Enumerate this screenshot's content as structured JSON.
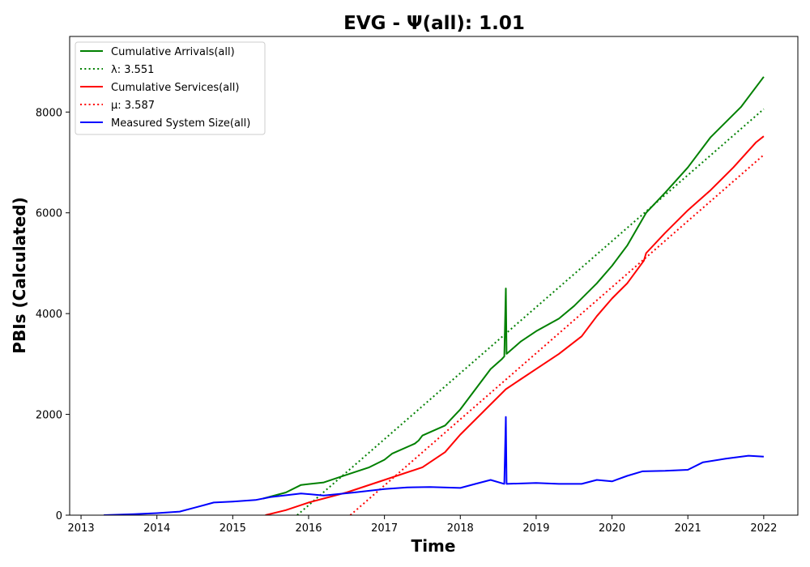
{
  "chart_data": {
    "type": "line",
    "title": "EVG -  Ψ(all): 1.01",
    "xlabel": "Time",
    "ylabel": "PBIs (Calculated)",
    "xlim": [
      2012.85,
      2022.45
    ],
    "ylim": [
      0,
      9500
    ],
    "xticks": [
      "2013",
      "2014",
      "2015",
      "2016",
      "2017",
      "2018",
      "2019",
      "2020",
      "2021",
      "2022"
    ],
    "yticks": [
      "0",
      "2000",
      "4000",
      "6000",
      "8000"
    ],
    "grid": false,
    "legend_position": "top-left",
    "series": [
      {
        "name": "Cumulative Arrivals(all)",
        "color": "#008000",
        "style": "solid",
        "points": [
          [
            2015.4,
            330
          ],
          [
            2015.7,
            450
          ],
          [
            2015.9,
            600
          ],
          [
            2016.2,
            650
          ],
          [
            2016.5,
            800
          ],
          [
            2016.8,
            950
          ],
          [
            2017.0,
            1100
          ],
          [
            2017.1,
            1220
          ],
          [
            2017.4,
            1420
          ],
          [
            2017.45,
            1480
          ],
          [
            2017.5,
            1580
          ],
          [
            2017.8,
            1780
          ],
          [
            2018.0,
            2100
          ],
          [
            2018.2,
            2500
          ],
          [
            2018.4,
            2900
          ],
          [
            2018.55,
            3100
          ],
          [
            2018.58,
            3150
          ],
          [
            2018.6,
            4500
          ],
          [
            2018.61,
            3200
          ],
          [
            2018.8,
            3450
          ],
          [
            2019.0,
            3650
          ],
          [
            2019.3,
            3900
          ],
          [
            2019.5,
            4150
          ],
          [
            2019.8,
            4600
          ],
          [
            2020.0,
            4950
          ],
          [
            2020.2,
            5350
          ],
          [
            2020.45,
            6000
          ],
          [
            2020.7,
            6400
          ],
          [
            2021.0,
            6900
          ],
          [
            2021.3,
            7500
          ],
          [
            2021.7,
            8100
          ],
          [
            2022.0,
            8700
          ]
        ]
      },
      {
        "name": "λ: 3.551",
        "color": "#008000",
        "style": "dotted",
        "points": [
          [
            2015.85,
            0
          ],
          [
            2022.0,
            8060
          ]
        ]
      },
      {
        "name": "Cumulative Services(all)",
        "color": "#ff0000",
        "style": "solid",
        "points": [
          [
            2015.43,
            0
          ],
          [
            2015.7,
            100
          ],
          [
            2016.0,
            250
          ],
          [
            2016.5,
            450
          ],
          [
            2017.0,
            700
          ],
          [
            2017.5,
            950
          ],
          [
            2017.8,
            1250
          ],
          [
            2018.0,
            1600
          ],
          [
            2018.3,
            2050
          ],
          [
            2018.6,
            2500
          ],
          [
            2018.8,
            2700
          ],
          [
            2019.0,
            2900
          ],
          [
            2019.3,
            3200
          ],
          [
            2019.6,
            3550
          ],
          [
            2019.8,
            3950
          ],
          [
            2020.0,
            4300
          ],
          [
            2020.2,
            4600
          ],
          [
            2020.42,
            5050
          ],
          [
            2020.45,
            5200
          ],
          [
            2020.7,
            5600
          ],
          [
            2021.0,
            6050
          ],
          [
            2021.3,
            6450
          ],
          [
            2021.6,
            6900
          ],
          [
            2021.9,
            7400
          ],
          [
            2022.0,
            7520
          ]
        ]
      },
      {
        "name": "μ: 3.587",
        "color": "#ff0000",
        "style": "dotted",
        "points": [
          [
            2016.55,
            0
          ],
          [
            2022.0,
            7150
          ]
        ]
      },
      {
        "name": "Measured System Size(all)",
        "color": "#0000ff",
        "style": "solid",
        "points": [
          [
            2013.3,
            0
          ],
          [
            2013.7,
            20
          ],
          [
            2014.0,
            40
          ],
          [
            2014.3,
            70
          ],
          [
            2014.5,
            150
          ],
          [
            2014.75,
            250
          ],
          [
            2015.0,
            270
          ],
          [
            2015.3,
            300
          ],
          [
            2015.5,
            360
          ],
          [
            2015.9,
            430
          ],
          [
            2016.2,
            390
          ],
          [
            2016.6,
            450
          ],
          [
            2017.0,
            520
          ],
          [
            2017.3,
            550
          ],
          [
            2017.6,
            560
          ],
          [
            2018.0,
            540
          ],
          [
            2018.2,
            620
          ],
          [
            2018.4,
            700
          ],
          [
            2018.58,
            620
          ],
          [
            2018.6,
            1950
          ],
          [
            2018.61,
            620
          ],
          [
            2019.0,
            640
          ],
          [
            2019.3,
            620
          ],
          [
            2019.6,
            620
          ],
          [
            2019.8,
            700
          ],
          [
            2020.0,
            670
          ],
          [
            2020.2,
            780
          ],
          [
            2020.4,
            870
          ],
          [
            2020.7,
            880
          ],
          [
            2021.0,
            900
          ],
          [
            2021.2,
            1050
          ],
          [
            2021.5,
            1120
          ],
          [
            2021.8,
            1180
          ],
          [
            2022.0,
            1160
          ]
        ]
      }
    ]
  }
}
